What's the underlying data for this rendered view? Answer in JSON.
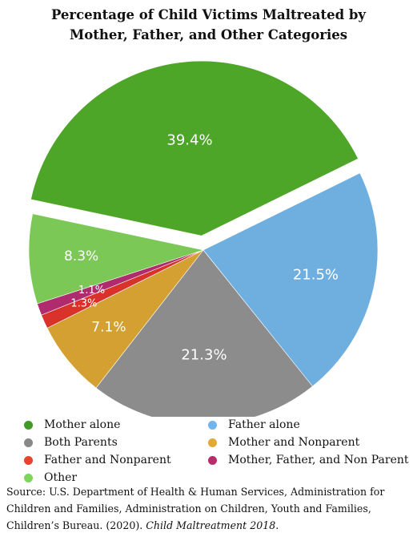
{
  "chart_data": {
    "type": "pie",
    "title": "Percentage of Child Victims Maltreated by Mother, Father, and Other Categories",
    "title_lines": [
      "Percentage of Child Victims Maltreated by",
      "Mother, Father, and Other Categories"
    ],
    "slices": [
      {
        "name": "Mother alone",
        "value": 39.4,
        "label": "39.4%",
        "color": "#4ea629",
        "exploded": true
      },
      {
        "name": "Father alone",
        "value": 21.5,
        "label": "21.5%",
        "color": "#6fafe0"
      },
      {
        "name": "Both Parents",
        "value": 21.3,
        "label": "21.3%",
        "color": "#8c8c8c"
      },
      {
        "name": "Mother and Nonparent",
        "value": 7.1,
        "label": "7.1%",
        "color": "#d4a032"
      },
      {
        "name": "Father and Nonparent",
        "value": 1.3,
        "label": "1.3%",
        "color": "#d8322a"
      },
      {
        "name": "Mother, Father, and Non Parent",
        "value": 1.1,
        "label": "1.1%",
        "color": "#b02a6e"
      },
      {
        "name": "Other",
        "value": 8.3,
        "label": "8.3%",
        "color": "#7cc856"
      }
    ],
    "legend": {
      "placement": "bottom",
      "items": [
        {
          "name": "Mother alone",
          "color": "#3f9a27"
        },
        {
          "name": "Father alone",
          "color": "#6fb6ec"
        },
        {
          "name": "Both Parents",
          "color": "#888888"
        },
        {
          "name": "Mother and Nonparent",
          "color": "#e2a935"
        },
        {
          "name": "Father and Nonparent",
          "color": "#e8432c"
        },
        {
          "name": "Mother, Father, and Non Parent",
          "color": "#b72d6b"
        },
        {
          "name": "Other",
          "color": "#7fd55c"
        }
      ]
    }
  },
  "source": {
    "prefix": "Source: U.S. Department of Health & Human Services, Administration for Children and Families, Administration on Children, Youth and Families, Children’s Bureau. (2020). ",
    "italic": "Child Maltreatment 2018",
    "suffix": "."
  }
}
